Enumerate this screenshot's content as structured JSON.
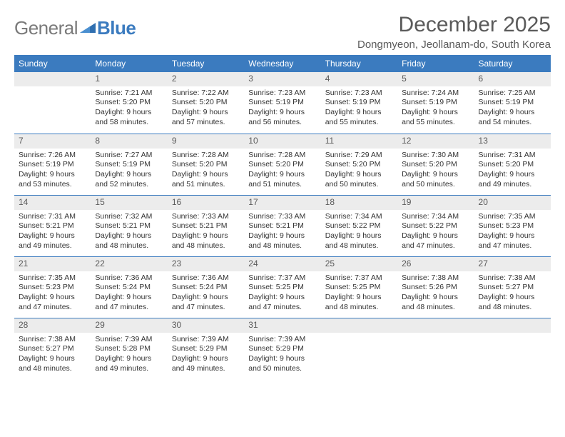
{
  "logo": {
    "text1": "General",
    "text2": "Blue"
  },
  "title": "December 2025",
  "location": "Dongmyeon, Jeollanam-do, South Korea",
  "header_bg": "#3b7bbf",
  "header_text_color": "#ffffff",
  "daynum_bg": "#ececec",
  "weekdays": [
    "Sunday",
    "Monday",
    "Tuesday",
    "Wednesday",
    "Thursday",
    "Friday",
    "Saturday"
  ],
  "weeks": [
    [
      {
        "num": "",
        "lines": []
      },
      {
        "num": "1",
        "lines": [
          "Sunrise: 7:21 AM",
          "Sunset: 5:20 PM",
          "Daylight: 9 hours",
          "and 58 minutes."
        ]
      },
      {
        "num": "2",
        "lines": [
          "Sunrise: 7:22 AM",
          "Sunset: 5:20 PM",
          "Daylight: 9 hours",
          "and 57 minutes."
        ]
      },
      {
        "num": "3",
        "lines": [
          "Sunrise: 7:23 AM",
          "Sunset: 5:19 PM",
          "Daylight: 9 hours",
          "and 56 minutes."
        ]
      },
      {
        "num": "4",
        "lines": [
          "Sunrise: 7:23 AM",
          "Sunset: 5:19 PM",
          "Daylight: 9 hours",
          "and 55 minutes."
        ]
      },
      {
        "num": "5",
        "lines": [
          "Sunrise: 7:24 AM",
          "Sunset: 5:19 PM",
          "Daylight: 9 hours",
          "and 55 minutes."
        ]
      },
      {
        "num": "6",
        "lines": [
          "Sunrise: 7:25 AM",
          "Sunset: 5:19 PM",
          "Daylight: 9 hours",
          "and 54 minutes."
        ]
      }
    ],
    [
      {
        "num": "7",
        "lines": [
          "Sunrise: 7:26 AM",
          "Sunset: 5:19 PM",
          "Daylight: 9 hours",
          "and 53 minutes."
        ]
      },
      {
        "num": "8",
        "lines": [
          "Sunrise: 7:27 AM",
          "Sunset: 5:19 PM",
          "Daylight: 9 hours",
          "and 52 minutes."
        ]
      },
      {
        "num": "9",
        "lines": [
          "Sunrise: 7:28 AM",
          "Sunset: 5:20 PM",
          "Daylight: 9 hours",
          "and 51 minutes."
        ]
      },
      {
        "num": "10",
        "lines": [
          "Sunrise: 7:28 AM",
          "Sunset: 5:20 PM",
          "Daylight: 9 hours",
          "and 51 minutes."
        ]
      },
      {
        "num": "11",
        "lines": [
          "Sunrise: 7:29 AM",
          "Sunset: 5:20 PM",
          "Daylight: 9 hours",
          "and 50 minutes."
        ]
      },
      {
        "num": "12",
        "lines": [
          "Sunrise: 7:30 AM",
          "Sunset: 5:20 PM",
          "Daylight: 9 hours",
          "and 50 minutes."
        ]
      },
      {
        "num": "13",
        "lines": [
          "Sunrise: 7:31 AM",
          "Sunset: 5:20 PM",
          "Daylight: 9 hours",
          "and 49 minutes."
        ]
      }
    ],
    [
      {
        "num": "14",
        "lines": [
          "Sunrise: 7:31 AM",
          "Sunset: 5:21 PM",
          "Daylight: 9 hours",
          "and 49 minutes."
        ]
      },
      {
        "num": "15",
        "lines": [
          "Sunrise: 7:32 AM",
          "Sunset: 5:21 PM",
          "Daylight: 9 hours",
          "and 48 minutes."
        ]
      },
      {
        "num": "16",
        "lines": [
          "Sunrise: 7:33 AM",
          "Sunset: 5:21 PM",
          "Daylight: 9 hours",
          "and 48 minutes."
        ]
      },
      {
        "num": "17",
        "lines": [
          "Sunrise: 7:33 AM",
          "Sunset: 5:21 PM",
          "Daylight: 9 hours",
          "and 48 minutes."
        ]
      },
      {
        "num": "18",
        "lines": [
          "Sunrise: 7:34 AM",
          "Sunset: 5:22 PM",
          "Daylight: 9 hours",
          "and 48 minutes."
        ]
      },
      {
        "num": "19",
        "lines": [
          "Sunrise: 7:34 AM",
          "Sunset: 5:22 PM",
          "Daylight: 9 hours",
          "and 47 minutes."
        ]
      },
      {
        "num": "20",
        "lines": [
          "Sunrise: 7:35 AM",
          "Sunset: 5:23 PM",
          "Daylight: 9 hours",
          "and 47 minutes."
        ]
      }
    ],
    [
      {
        "num": "21",
        "lines": [
          "Sunrise: 7:35 AM",
          "Sunset: 5:23 PM",
          "Daylight: 9 hours",
          "and 47 minutes."
        ]
      },
      {
        "num": "22",
        "lines": [
          "Sunrise: 7:36 AM",
          "Sunset: 5:24 PM",
          "Daylight: 9 hours",
          "and 47 minutes."
        ]
      },
      {
        "num": "23",
        "lines": [
          "Sunrise: 7:36 AM",
          "Sunset: 5:24 PM",
          "Daylight: 9 hours",
          "and 47 minutes."
        ]
      },
      {
        "num": "24",
        "lines": [
          "Sunrise: 7:37 AM",
          "Sunset: 5:25 PM",
          "Daylight: 9 hours",
          "and 47 minutes."
        ]
      },
      {
        "num": "25",
        "lines": [
          "Sunrise: 7:37 AM",
          "Sunset: 5:25 PM",
          "Daylight: 9 hours",
          "and 48 minutes."
        ]
      },
      {
        "num": "26",
        "lines": [
          "Sunrise: 7:38 AM",
          "Sunset: 5:26 PM",
          "Daylight: 9 hours",
          "and 48 minutes."
        ]
      },
      {
        "num": "27",
        "lines": [
          "Sunrise: 7:38 AM",
          "Sunset: 5:27 PM",
          "Daylight: 9 hours",
          "and 48 minutes."
        ]
      }
    ],
    [
      {
        "num": "28",
        "lines": [
          "Sunrise: 7:38 AM",
          "Sunset: 5:27 PM",
          "Daylight: 9 hours",
          "and 48 minutes."
        ]
      },
      {
        "num": "29",
        "lines": [
          "Sunrise: 7:39 AM",
          "Sunset: 5:28 PM",
          "Daylight: 9 hours",
          "and 49 minutes."
        ]
      },
      {
        "num": "30",
        "lines": [
          "Sunrise: 7:39 AM",
          "Sunset: 5:29 PM",
          "Daylight: 9 hours",
          "and 49 minutes."
        ]
      },
      {
        "num": "31",
        "lines": [
          "Sunrise: 7:39 AM",
          "Sunset: 5:29 PM",
          "Daylight: 9 hours",
          "and 50 minutes."
        ]
      },
      {
        "num": "",
        "lines": []
      },
      {
        "num": "",
        "lines": []
      },
      {
        "num": "",
        "lines": []
      }
    ]
  ]
}
